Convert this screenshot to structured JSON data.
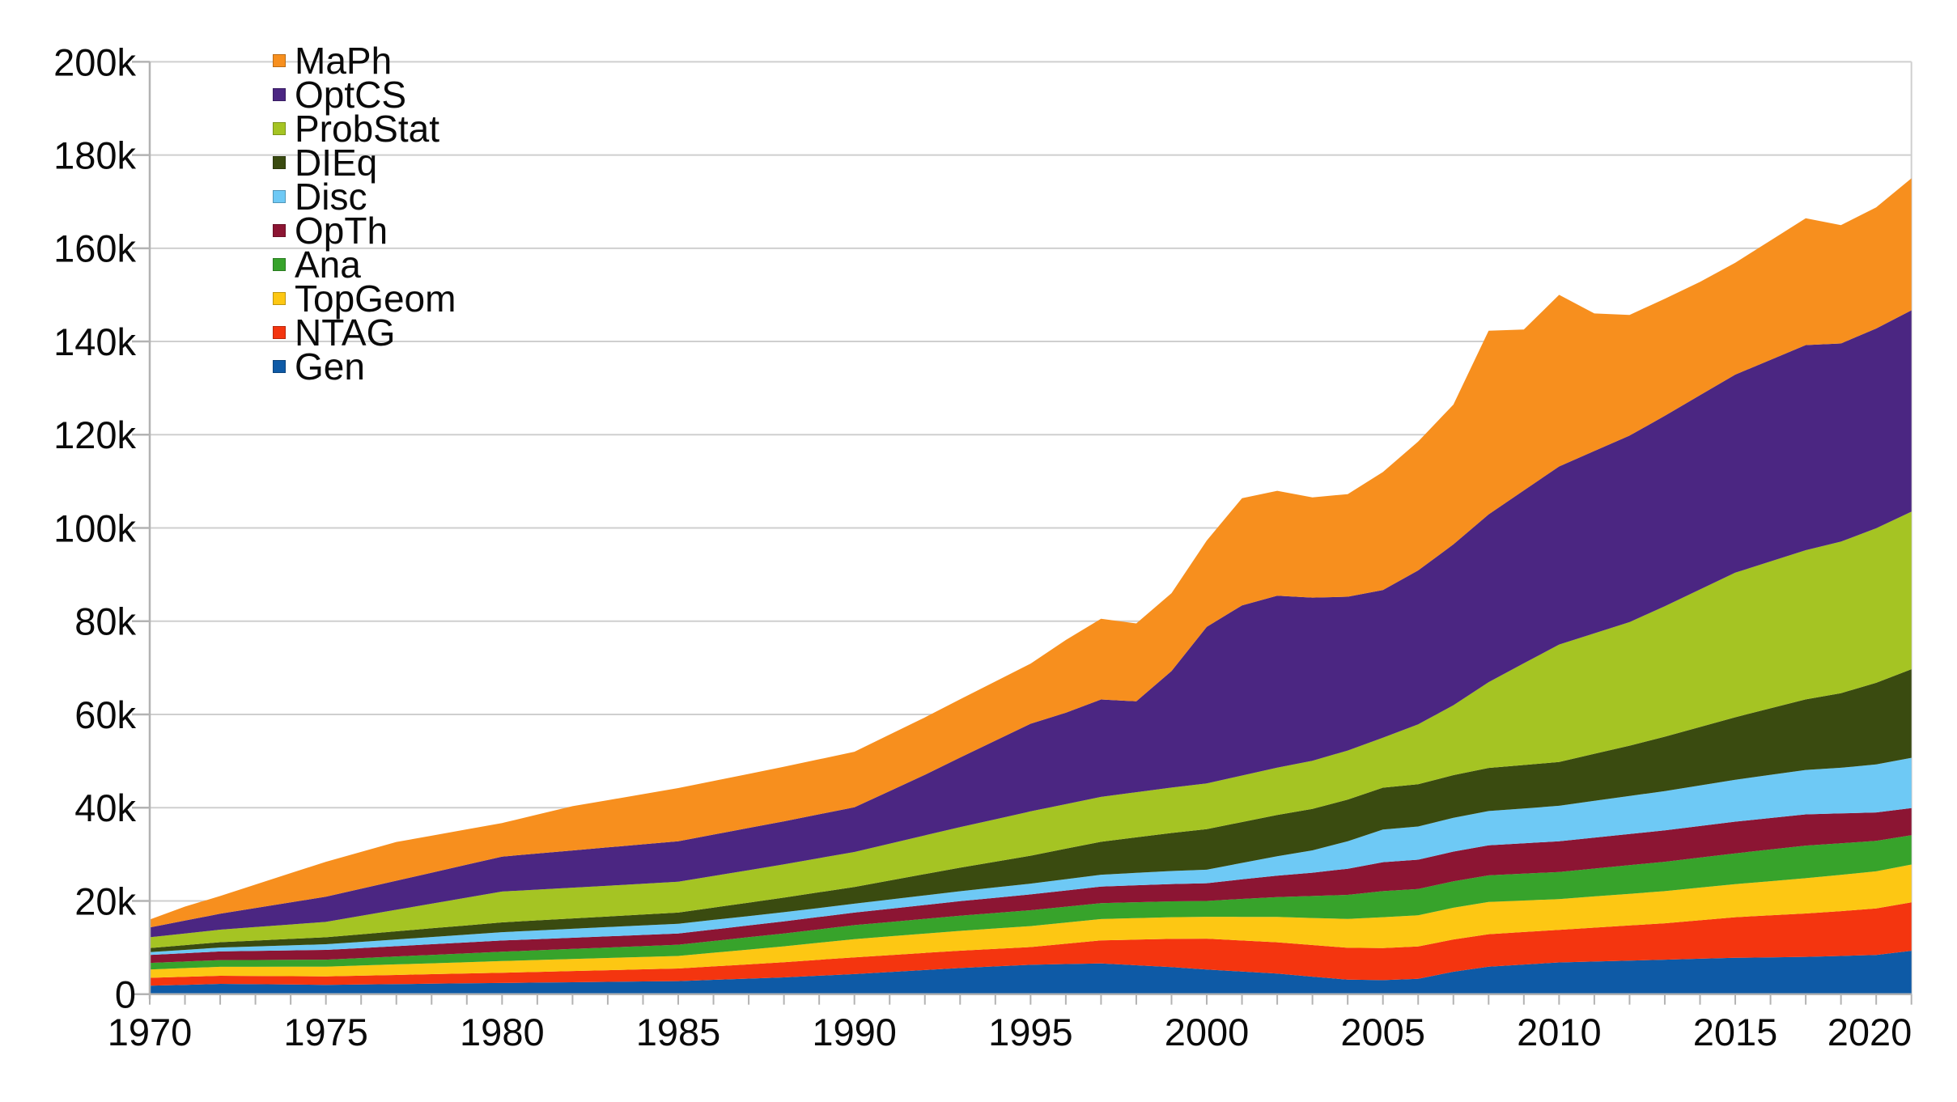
{
  "chart_data": {
    "type": "area",
    "stacked": true,
    "title": "",
    "xlabel": "",
    "ylabel": "",
    "values_unit": "thousands",
    "x": [
      1970,
      1971,
      1972,
      1973,
      1974,
      1975,
      1976,
      1977,
      1978,
      1979,
      1980,
      1981,
      1982,
      1983,
      1984,
      1985,
      1986,
      1987,
      1988,
      1989,
      1990,
      1991,
      1992,
      1993,
      1994,
      1995,
      1996,
      1997,
      1998,
      1999,
      2000,
      2001,
      2002,
      2003,
      2004,
      2005,
      2006,
      2007,
      2008,
      2009,
      2010,
      2011,
      2012,
      2013,
      2014,
      2015,
      2016,
      2017,
      2018,
      2019,
      2020
    ],
    "series": [
      {
        "name": "Gen",
        "color": "#0e5aa6",
        "values": [
          1.8,
          2.0,
          2.2,
          2.13,
          2.07,
          2.0,
          2.08,
          2.16,
          2.24,
          2.32,
          2.4,
          2.48,
          2.56,
          2.64,
          2.72,
          2.8,
          3.07,
          3.33,
          3.6,
          3.95,
          4.3,
          4.73,
          5.17,
          5.6,
          5.95,
          6.3,
          6.45,
          6.6,
          6.2,
          5.8,
          5.3,
          4.85,
          4.4,
          3.75,
          3.1,
          3.0,
          3.3,
          4.8,
          5.9,
          6.35,
          6.8,
          7.0,
          7.2,
          7.4,
          7.6,
          7.8,
          7.9,
          8.0,
          8.2,
          8.4,
          9.3
        ]
      },
      {
        "name": "NTAG",
        "color": "#f4350f",
        "values": [
          1.7,
          1.72,
          1.74,
          1.76,
          1.78,
          1.8,
          1.88,
          1.96,
          2.04,
          2.12,
          2.2,
          2.3,
          2.4,
          2.5,
          2.6,
          2.7,
          2.88,
          3.06,
          3.24,
          3.42,
          3.6,
          3.64,
          3.68,
          3.72,
          3.76,
          3.8,
          4.37,
          4.93,
          5.5,
          6.05,
          6.6,
          6.66,
          6.72,
          6.78,
          6.84,
          6.9,
          6.92,
          6.94,
          6.96,
          6.98,
          7.0,
          7.27,
          7.53,
          7.8,
          8.25,
          8.7,
          9.0,
          9.3,
          9.6,
          10.0,
          10.4
        ]
      },
      {
        "name": "TopGeom",
        "color": "#fdc713",
        "values": [
          1.8,
          1.86,
          1.92,
          1.98,
          2.04,
          2.1,
          2.18,
          2.26,
          2.34,
          2.42,
          2.5,
          2.54,
          2.58,
          2.62,
          2.66,
          2.7,
          2.94,
          3.18,
          3.42,
          3.66,
          3.9,
          4.02,
          4.14,
          4.26,
          4.38,
          4.5,
          4.54,
          4.58,
          4.62,
          4.66,
          4.7,
          5.07,
          5.43,
          5.8,
          6.2,
          6.6,
          6.7,
          6.8,
          6.9,
          6.75,
          6.6,
          6.7,
          6.8,
          6.9,
          7.0,
          7.1,
          7.33,
          7.57,
          7.8,
          7.95,
          8.1
        ]
      },
      {
        "name": "Ana",
        "color": "#37a32b",
        "values": [
          1.4,
          1.42,
          1.44,
          1.46,
          1.48,
          1.5,
          1.6,
          1.7,
          1.8,
          1.9,
          2.0,
          2.08,
          2.16,
          2.24,
          2.32,
          2.4,
          2.52,
          2.64,
          2.76,
          2.88,
          3.0,
          3.08,
          3.16,
          3.24,
          3.32,
          3.4,
          3.4,
          3.4,
          3.4,
          3.4,
          3.4,
          3.84,
          4.28,
          4.72,
          5.16,
          5.6,
          5.64,
          5.68,
          5.72,
          5.76,
          5.8,
          5.97,
          6.13,
          6.3,
          6.45,
          6.6,
          6.8,
          7.0,
          6.77,
          6.53,
          6.3
        ]
      },
      {
        "name": "OpTh",
        "color": "#8c1533",
        "values": [
          1.7,
          1.78,
          1.86,
          1.94,
          2.02,
          2.1,
          2.16,
          2.22,
          2.28,
          2.34,
          2.4,
          2.4,
          2.4,
          2.4,
          2.4,
          2.4,
          2.46,
          2.52,
          2.58,
          2.64,
          2.7,
          2.84,
          2.98,
          3.12,
          3.26,
          3.4,
          3.48,
          3.56,
          3.64,
          3.72,
          3.8,
          4.2,
          4.6,
          5.0,
          5.6,
          6.2,
          6.28,
          6.36,
          6.44,
          6.52,
          6.6,
          6.64,
          6.68,
          6.72,
          6.76,
          6.8,
          6.75,
          6.7,
          6.4,
          6.1,
          5.8
        ]
      },
      {
        "name": "Disc",
        "color": "#6ec9f5",
        "values": [
          0.6,
          0.72,
          0.84,
          0.96,
          1.08,
          1.2,
          1.32,
          1.44,
          1.56,
          1.68,
          1.8,
          1.86,
          1.92,
          1.98,
          2.04,
          2.1,
          2.06,
          2.02,
          1.98,
          1.94,
          1.9,
          1.98,
          2.06,
          2.14,
          2.22,
          2.3,
          2.42,
          2.54,
          2.66,
          2.78,
          2.9,
          3.53,
          4.17,
          4.8,
          5.9,
          7.0,
          7.12,
          7.24,
          7.36,
          7.48,
          7.6,
          7.88,
          8.16,
          8.44,
          8.72,
          9.0,
          9.27,
          9.53,
          9.8,
          10.3,
          10.8
        ]
      },
      {
        "name": "DIEq",
        "color": "#3a4b10",
        "values": [
          0.9,
          1.02,
          1.14,
          1.26,
          1.38,
          1.5,
          1.62,
          1.74,
          1.86,
          1.98,
          2.1,
          2.16,
          2.22,
          2.28,
          2.34,
          2.4,
          2.64,
          2.88,
          3.12,
          3.36,
          3.6,
          4.08,
          4.56,
          5.04,
          5.52,
          6.0,
          6.54,
          7.08,
          7.62,
          8.16,
          8.7,
          8.76,
          8.82,
          8.88,
          8.94,
          9.0,
          9.08,
          9.16,
          9.24,
          9.32,
          9.4,
          10.1,
          10.8,
          11.67,
          12.53,
          13.4,
          14.27,
          15.13,
          16.0,
          17.5,
          19.0
        ]
      },
      {
        "name": "ProbStat",
        "color": "#a5c423",
        "values": [
          2.3,
          2.5,
          2.7,
          2.9,
          3.1,
          3.3,
          3.96,
          4.62,
          5.28,
          5.94,
          6.6,
          6.6,
          6.6,
          6.6,
          6.6,
          6.6,
          6.78,
          6.96,
          7.14,
          7.32,
          7.5,
          7.9,
          8.3,
          8.7,
          9.1,
          9.5,
          9.56,
          9.62,
          9.68,
          9.74,
          9.8,
          9.98,
          10.16,
          10.34,
          10.52,
          10.7,
          12.85,
          15.0,
          18.4,
          21.8,
          25.2,
          25.85,
          26.5,
          28.0,
          29.5,
          31.0,
          31.5,
          32.0,
          32.5,
          33.15,
          33.8
        ]
      },
      {
        "name": "OptCS",
        "color": "#4b2682",
        "values": [
          2.1,
          2.76,
          3.42,
          4.08,
          4.74,
          5.4,
          5.82,
          6.24,
          6.66,
          7.08,
          7.5,
          7.74,
          7.98,
          8.22,
          8.46,
          8.7,
          8.88,
          9.06,
          9.24,
          9.42,
          9.6,
          11.3,
          13.0,
          14.93,
          16.87,
          18.8,
          19.6,
          20.9,
          19.5,
          25.0,
          33.6,
          36.5,
          36.9,
          35.0,
          33.0,
          31.7,
          33.0,
          34.5,
          36.0,
          37.1,
          38.2,
          39.1,
          40.0,
          40.83,
          41.67,
          42.5,
          43.25,
          44.0,
          42.5,
          42.85,
          43.2
        ]
      },
      {
        "name": "MaPh",
        "color": "#f78f1e",
        "values": [
          1.7,
          3.0,
          3.8,
          5.03,
          6.27,
          7.5,
          7.9,
          8.3,
          7.93,
          7.57,
          7.2,
          8.35,
          9.5,
          10.13,
          10.77,
          11.4,
          11.5,
          11.6,
          11.7,
          11.8,
          11.9,
          12.1,
          12.3,
          12.5,
          12.7,
          12.9,
          15.6,
          17.3,
          16.7,
          16.7,
          18.5,
          23.0,
          22.5,
          21.5,
          22.0,
          25.3,
          27.65,
          30.0,
          39.4,
          34.5,
          36.8,
          29.5,
          25.9,
          25.1,
          24.3,
          24.0,
          25.6,
          27.2,
          25.4,
          26.0,
          28.3
        ]
      }
    ],
    "legend": {
      "position": "top-left-inside",
      "order_top_to_bottom": [
        "MaPh",
        "OptCS",
        "ProbStat",
        "DIEq",
        "Disc",
        "OpTh",
        "Ana",
        "TopGeom",
        "NTAG",
        "Gen"
      ]
    },
    "y_axis": {
      "min": 0,
      "max": 200000,
      "tick_step": 20000,
      "tick_labels": [
        "0",
        "20k",
        "40k",
        "60k",
        "80k",
        "100k",
        "120k",
        "140k",
        "160k",
        "180k",
        "200k"
      ]
    },
    "x_axis": {
      "min": 1970,
      "max": 2020,
      "minor_tick_step": 1,
      "label_step": 5,
      "labels": [
        "1970",
        "1975",
        "1980",
        "1985",
        "1990",
        "1995",
        "2000",
        "2005",
        "2010",
        "2015",
        "2020"
      ]
    },
    "grid": {
      "horizontal": true,
      "vertical": false
    }
  },
  "styles": {
    "grid_color": "#cfcfcf",
    "axis_color": "#b3b3b3",
    "text_color": "#0a0a0a",
    "background": "#ffffff"
  }
}
